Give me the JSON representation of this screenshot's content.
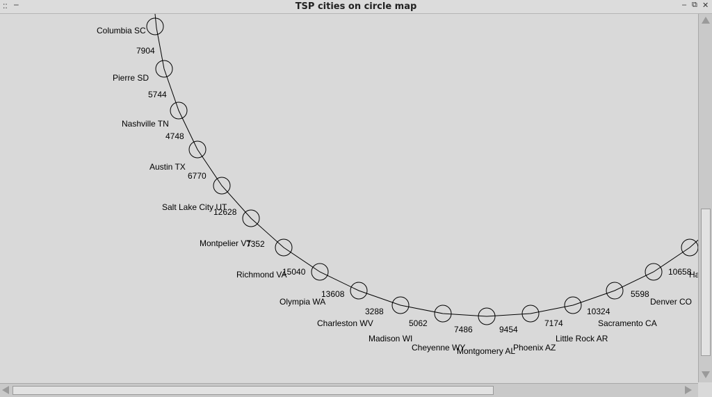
{
  "window": {
    "title": "TSP cities on circle map",
    "menu_glyph": "::",
    "minimize_left_glyph": "‒",
    "minimize_glyph": "–",
    "restore_glyph": "⧉",
    "close_glyph": "✕"
  },
  "cities": [
    {
      "name": "Columbia SC",
      "distance": "7904"
    },
    {
      "name": "Pierre SD",
      "distance": "5744"
    },
    {
      "name": "Nashville TN",
      "distance": "4748"
    },
    {
      "name": "Austin TX",
      "distance": "6770"
    },
    {
      "name": "Salt Lake City UT",
      "distance": "12628"
    },
    {
      "name": "Montpelier VT",
      "distance": "7352"
    },
    {
      "name": "Richmond VA",
      "distance": "15040"
    },
    {
      "name": "Olympia WA",
      "distance": "13608"
    },
    {
      "name": "Charleston WV",
      "distance": "3288"
    },
    {
      "name": "Madison WI",
      "distance": "5062"
    },
    {
      "name": "Cheyenne WY",
      "distance": "7486"
    },
    {
      "name": "Montgomery AL",
      "distance": "9454"
    },
    {
      "name": "Phoenix AZ",
      "distance": "7174"
    },
    {
      "name": "Little Rock AR",
      "distance": "10324"
    },
    {
      "name": "Sacramento CA",
      "distance": "5598"
    },
    {
      "name": "Denver CO",
      "distance": "10658"
    },
    {
      "name": "Ha",
      "distance": ""
    }
  ]
}
